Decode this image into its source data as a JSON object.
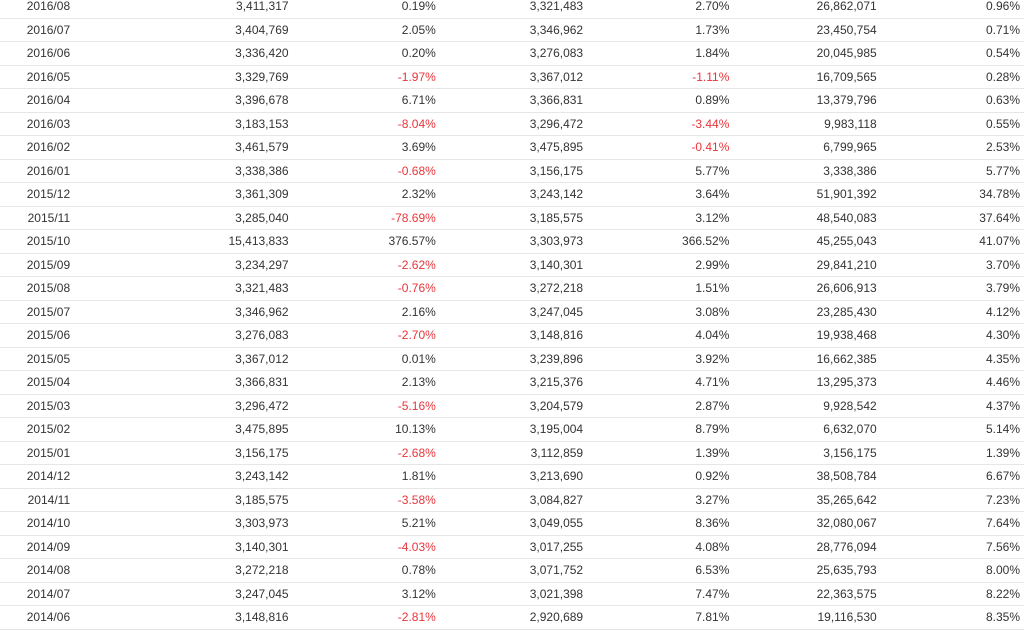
{
  "colors": {
    "negative": "#e8353b",
    "text": "#333333",
    "row_border": "#e6e6e6"
  },
  "table": {
    "rows": [
      [
        "2016/08",
        "3,411,317",
        "0.19%",
        "3,321,483",
        "2.70%",
        "26,862,071",
        "0.96%"
      ],
      [
        "2016/07",
        "3,404,769",
        "2.05%",
        "3,346,962",
        "1.73%",
        "23,450,754",
        "0.71%"
      ],
      [
        "2016/06",
        "3,336,420",
        "0.20%",
        "3,276,083",
        "1.84%",
        "20,045,985",
        "0.54%"
      ],
      [
        "2016/05",
        "3,329,769",
        "-1.97%",
        "3,367,012",
        "-1.11%",
        "16,709,565",
        "0.28%"
      ],
      [
        "2016/04",
        "3,396,678",
        "6.71%",
        "3,366,831",
        "0.89%",
        "13,379,796",
        "0.63%"
      ],
      [
        "2016/03",
        "3,183,153",
        "-8.04%",
        "3,296,472",
        "-3.44%",
        "9,983,118",
        "0.55%"
      ],
      [
        "2016/02",
        "3,461,579",
        "3.69%",
        "3,475,895",
        "-0.41%",
        "6,799,965",
        "2.53%"
      ],
      [
        "2016/01",
        "3,338,386",
        "-0.68%",
        "3,156,175",
        "5.77%",
        "3,338,386",
        "5.77%"
      ],
      [
        "2015/12",
        "3,361,309",
        "2.32%",
        "3,243,142",
        "3.64%",
        "51,901,392",
        "34.78%"
      ],
      [
        "2015/11",
        "3,285,040",
        "-78.69%",
        "3,185,575",
        "3.12%",
        "48,540,083",
        "37.64%"
      ],
      [
        "2015/10",
        "15,413,833",
        "376.57%",
        "3,303,973",
        "366.52%",
        "45,255,043",
        "41.07%"
      ],
      [
        "2015/09",
        "3,234,297",
        "-2.62%",
        "3,140,301",
        "2.99%",
        "29,841,210",
        "3.70%"
      ],
      [
        "2015/08",
        "3,321,483",
        "-0.76%",
        "3,272,218",
        "1.51%",
        "26,606,913",
        "3.79%"
      ],
      [
        "2015/07",
        "3,346,962",
        "2.16%",
        "3,247,045",
        "3.08%",
        "23,285,430",
        "4.12%"
      ],
      [
        "2015/06",
        "3,276,083",
        "-2.70%",
        "3,148,816",
        "4.04%",
        "19,938,468",
        "4.30%"
      ],
      [
        "2015/05",
        "3,367,012",
        "0.01%",
        "3,239,896",
        "3.92%",
        "16,662,385",
        "4.35%"
      ],
      [
        "2015/04",
        "3,366,831",
        "2.13%",
        "3,215,376",
        "4.71%",
        "13,295,373",
        "4.46%"
      ],
      [
        "2015/03",
        "3,296,472",
        "-5.16%",
        "3,204,579",
        "2.87%",
        "9,928,542",
        "4.37%"
      ],
      [
        "2015/02",
        "3,475,895",
        "10.13%",
        "3,195,004",
        "8.79%",
        "6,632,070",
        "5.14%"
      ],
      [
        "2015/01",
        "3,156,175",
        "-2.68%",
        "3,112,859",
        "1.39%",
        "3,156,175",
        "1.39%"
      ],
      [
        "2014/12",
        "3,243,142",
        "1.81%",
        "3,213,690",
        "0.92%",
        "38,508,784",
        "6.67%"
      ],
      [
        "2014/11",
        "3,185,575",
        "-3.58%",
        "3,084,827",
        "3.27%",
        "35,265,642",
        "7.23%"
      ],
      [
        "2014/10",
        "3,303,973",
        "5.21%",
        "3,049,055",
        "8.36%",
        "32,080,067",
        "7.64%"
      ],
      [
        "2014/09",
        "3,140,301",
        "-4.03%",
        "3,017,255",
        "4.08%",
        "28,776,094",
        "7.56%"
      ],
      [
        "2014/08",
        "3,272,218",
        "0.78%",
        "3,071,752",
        "6.53%",
        "25,635,793",
        "8.00%"
      ],
      [
        "2014/07",
        "3,247,045",
        "3.12%",
        "3,021,398",
        "7.47%",
        "22,363,575",
        "8.22%"
      ],
      [
        "2014/06",
        "3,148,816",
        "-2.81%",
        "2,920,689",
        "7.81%",
        "19,116,530",
        "8.35%"
      ]
    ]
  }
}
